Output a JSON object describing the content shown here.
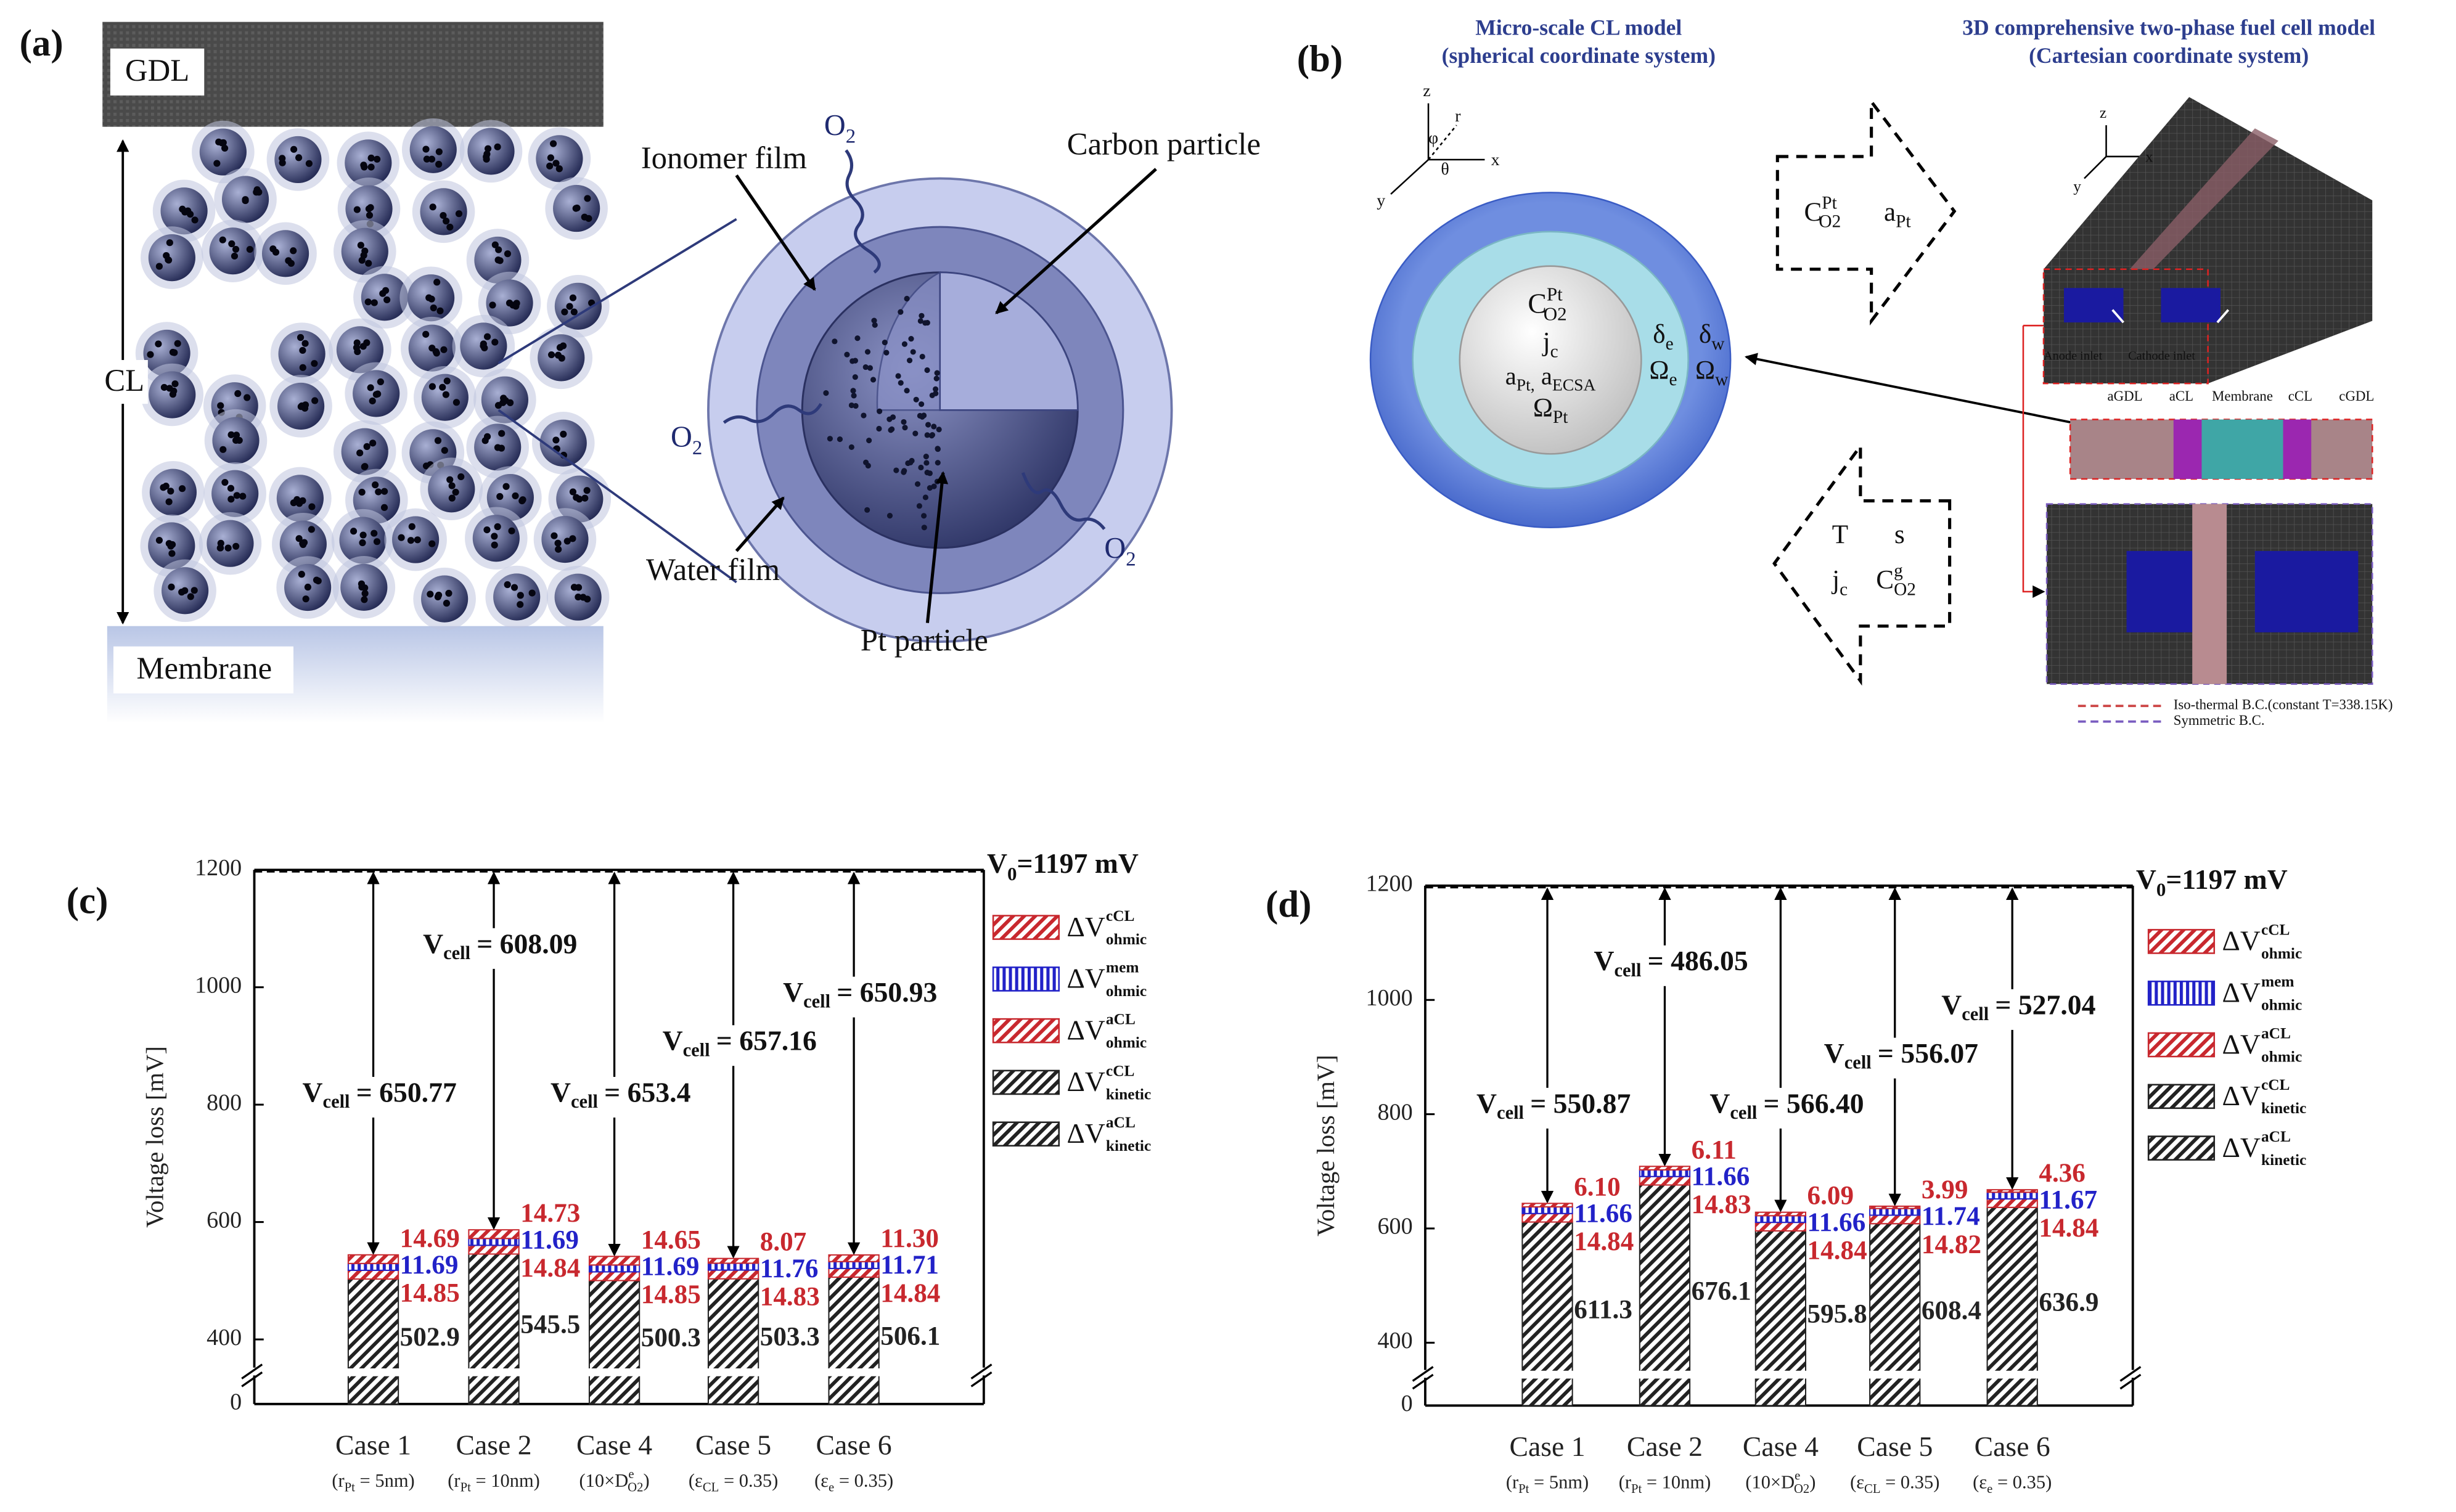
{
  "panel_a": {
    "label": "(a)",
    "gdl": "GDL",
    "cl": "CL",
    "membrane": "Membrane",
    "ionomer_film": "Ionomer film",
    "carbon_particle": "Carbon particle",
    "water_film": "Water film",
    "pt_particle": "Pt particle",
    "oxygen": [
      [
        "O",
        "2"
      ],
      [
        "O",
        "2"
      ],
      [
        "O",
        "2"
      ]
    ]
  },
  "panel_b": {
    "label": "(b)",
    "micro_title": "Micro-scale CL model",
    "micro_subtitle": "(spherical coordinate system)",
    "macro_title": "3D comprehensive two-phase fuel cell model",
    "macro_subtitle": "(Cartesian coordinate system)",
    "micro_axes": [
      "z",
      "r",
      "φ",
      "θ",
      "x",
      "y"
    ],
    "macro_axes": [
      "z",
      "x",
      "y"
    ],
    "core": [
      [
        "C",
        "Pt",
        "O2"
      ],
      [
        "j",
        "c"
      ],
      [
        "a",
        "Pt,",
        " a",
        "ECSA"
      ],
      [
        "Ω",
        "Pt"
      ]
    ],
    "ionomer": [
      [
        "δ",
        "e"
      ],
      [
        "Ω",
        "e"
      ]
    ],
    "water": [
      [
        "δ",
        "w"
      ],
      [
        "Ω",
        "w"
      ]
    ],
    "to_macro": [
      [
        "C",
        "Pt",
        "O2"
      ],
      [
        "a",
        "Pt"
      ]
    ],
    "to_micro": [
      [
        "T"
      ],
      [
        "s"
      ],
      [
        "j",
        "c"
      ],
      [
        "C",
        "g",
        "O2"
      ]
    ],
    "inlets": [
      "Anode inlet",
      "Cathode inlet"
    ],
    "layers": [
      "aGDL",
      "aCL",
      "Membrane",
      "cCL",
      "cGDL"
    ],
    "boundary": [
      "Iso-thermal B.C.(constant T=338.15K)",
      "Symmetric B.C."
    ]
  },
  "chart_data": [
    {
      "type": "bar",
      "stacked": true,
      "panel_label": "(c)",
      "y_label": "Voltage loss [mV]",
      "categories": [
        "Case 1",
        "Case 2",
        "Case 4",
        "Case 5",
        "Case 6"
      ],
      "category_notes": [
        [
          "(r",
          "Pt",
          " = 5nm)"
        ],
        [
          "(r",
          "Pt",
          " = 10nm)"
        ],
        [
          "(10×D",
          "e",
          "O2",
          ")"
        ],
        [
          "(ε",
          "CL",
          " = 0.35)"
        ],
        [
          "(ε",
          "e",
          " = 0.35)"
        ]
      ],
      "ylim": [
        0,
        1200
      ],
      "yticks": [
        0,
        400,
        600,
        800,
        1000,
        1200
      ],
      "axis_break": [
        50,
        340
      ],
      "grid": false,
      "reference_line": {
        "value": 1197,
        "label": [
          "V",
          "0",
          "=1197 mV"
        ]
      },
      "vcell": {
        "symbol": [
          "V",
          "cell"
        ],
        "labels": [
          "= 650.77",
          "= 608.09",
          "= 653.4",
          "= 657.16",
          "= 650.93"
        ]
      },
      "series": [
        {
          "name": [
            "ΔV",
            "kinetic",
            "cCL"
          ],
          "color": "#222222",
          "hatch": "diagonal",
          "values": [
            502.9,
            545.5,
            500.3,
            503.3,
            506.1
          ]
        },
        {
          "name": [
            "ΔV",
            "ohmic",
            "aCL"
          ],
          "color": "#c8282e",
          "hatch": "diagonal",
          "values": [
            14.85,
            14.84,
            14.85,
            14.83,
            14.84
          ]
        },
        {
          "name": [
            "ΔV",
            "ohmic",
            "mem"
          ],
          "color": "#2222c8",
          "hatch": "vertical",
          "values": [
            11.69,
            11.69,
            11.69,
            11.76,
            11.71
          ]
        },
        {
          "name": [
            "ΔV",
            "ohmic",
            "cCL"
          ],
          "color": "#c8282e",
          "hatch": "diagonal",
          "values": [
            14.69,
            14.73,
            14.65,
            8.07,
            11.3
          ],
          "value_labels": [
            "14.69",
            "14.73",
            "14.65",
            "8.07",
            "11.30"
          ]
        }
      ],
      "extra_legend": [
        {
          "name": [
            "ΔV",
            "kinetic",
            "aCL"
          ],
          "color": "#222222",
          "hatch": "diagonal"
        }
      ]
    },
    {
      "type": "bar",
      "stacked": true,
      "panel_label": "(d)",
      "y_label": "Voltage loss [mV]",
      "categories": [
        "Case 1",
        "Case 2",
        "Case 4",
        "Case 5",
        "Case 6"
      ],
      "category_notes": [
        [
          "(r",
          "Pt",
          " = 5nm)"
        ],
        [
          "(r",
          "Pt",
          " = 10nm)"
        ],
        [
          "(10×D",
          "e",
          "O2",
          ")"
        ],
        [
          "(ε",
          "CL",
          " = 0.35)"
        ],
        [
          "(ε",
          "e",
          " = 0.35)"
        ]
      ],
      "ylim": [
        0,
        1200
      ],
      "yticks": [
        0,
        400,
        600,
        800,
        1000,
        1200
      ],
      "axis_break": [
        50,
        340
      ],
      "grid": false,
      "reference_line": {
        "value": 1197,
        "label": [
          "V",
          "0",
          "=1197 mV"
        ]
      },
      "vcell": {
        "symbol": [
          "V",
          "cell"
        ],
        "labels": [
          "= 550.87",
          "= 486.05",
          "= 566.40",
          "= 556.07",
          "= 527.04"
        ]
      },
      "series": [
        {
          "name": [
            "ΔV",
            "kinetic",
            "cCL"
          ],
          "color": "#222222",
          "hatch": "diagonal",
          "values": [
            611.3,
            676.1,
            595.8,
            608.4,
            636.9
          ]
        },
        {
          "name": [
            "ΔV",
            "ohmic",
            "aCL"
          ],
          "color": "#c8282e",
          "hatch": "diagonal",
          "values": [
            14.84,
            14.83,
            14.84,
            14.82,
            14.84
          ]
        },
        {
          "name": [
            "ΔV",
            "ohmic",
            "mem"
          ],
          "color": "#2222c8",
          "hatch": "vertical",
          "values": [
            11.66,
            11.66,
            11.66,
            11.74,
            11.67
          ]
        },
        {
          "name": [
            "ΔV",
            "ohmic",
            "cCL"
          ],
          "color": "#c8282e",
          "hatch": "diagonal",
          "values": [
            6.1,
            6.11,
            6.09,
            3.99,
            4.36
          ],
          "value_labels": [
            "6.10",
            "6.11",
            "6.09",
            "3.99",
            "4.36"
          ]
        }
      ],
      "extra_legend": [
        {
          "name": [
            "ΔV",
            "kinetic",
            "aCL"
          ],
          "color": "#222222",
          "hatch": "diagonal"
        }
      ]
    }
  ]
}
